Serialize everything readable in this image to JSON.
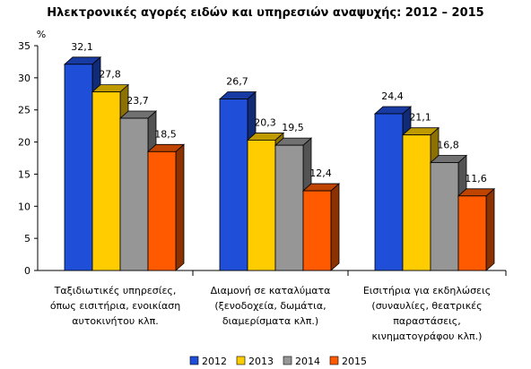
{
  "chart_data": {
    "type": "bar",
    "title": "Ηλεκτρονικές αγορές ειδών και υπηρεσιών αναψυχής: 2012 – 2015",
    "ylabel": "%",
    "ylim": [
      0,
      35
    ],
    "yticks": [
      0,
      5,
      10,
      15,
      20,
      25,
      30,
      35
    ],
    "categories": [
      [
        "Ταξιδιωτικές υπηρεσίες,",
        "όπως εισιτήρια, ενοικίαση",
        "αυτοκινήτου κλπ."
      ],
      [
        "Διαμονή σε καταλύματα",
        "(ξενοδοχεία, δωμάτια,",
        "διαμερίσματα κλπ.)"
      ],
      [
        "Εισιτήρια για εκδηλώσεις",
        "(συναυλίες, θεατρικές",
        "παραστάσεις,",
        "κινηματογράφου κλπ.)"
      ]
    ],
    "series": [
      {
        "name": "2012",
        "color": "#1f4fd8",
        "values": [
          32.1,
          26.7,
          24.4
        ]
      },
      {
        "name": "2013",
        "color": "#ffcc00",
        "values": [
          27.8,
          20.3,
          21.1
        ]
      },
      {
        "name": "2014",
        "color": "#969696",
        "values": [
          23.7,
          19.5,
          16.8
        ]
      },
      {
        "name": "2015",
        "color": "#ff5a00",
        "values": [
          18.5,
          12.4,
          11.6
        ]
      }
    ],
    "value_labels": [
      [
        "32,1",
        "26,7",
        "24,4"
      ],
      [
        "27,8",
        "20,3",
        "21,1"
      ],
      [
        "23,7",
        "19,5",
        "16,8"
      ],
      [
        "18,5",
        "12,4",
        "11,6"
      ]
    ],
    "grid": false,
    "legend_position": "bottom"
  }
}
